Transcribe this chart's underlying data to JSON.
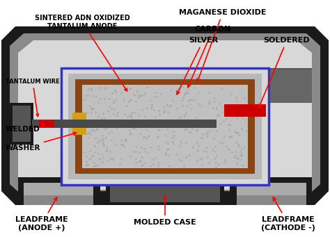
{
  "bg_color": "#ffffff",
  "labels": {
    "manganese_dioxide": "MAGANESE DIOXIDE",
    "carbon": "CARBON",
    "silver": "SILVER",
    "soldered": "SOLDERED",
    "sintered": "SINTERED ADN OXIDIZED\nTANTALUM ANODE",
    "tantalum_wire": "TANTALUM WIRE",
    "welded": "WELDED",
    "washer": "WASHER",
    "leadframe_anode": "LEADFRAME\n(ANODE +)",
    "molded_case": "MOLDED CASE",
    "leadframe_cathode": "LEADFRAME\n(CATHODE -)"
  },
  "colors": {
    "outer_black": "#1a1a1a",
    "mid_gray": "#8a8a8a",
    "light_gray": "#c8c8c8",
    "lighter_gray": "#d8d8d8",
    "blue_border": "#3333cc",
    "brown": "#8B4513",
    "anode_gray": "#c0c0c0",
    "wire_dark": "#4a4a4a",
    "red": "#cc0000",
    "yellow": "#d4a017",
    "dark_lead": "#333333",
    "connector_gray": "#888888"
  }
}
